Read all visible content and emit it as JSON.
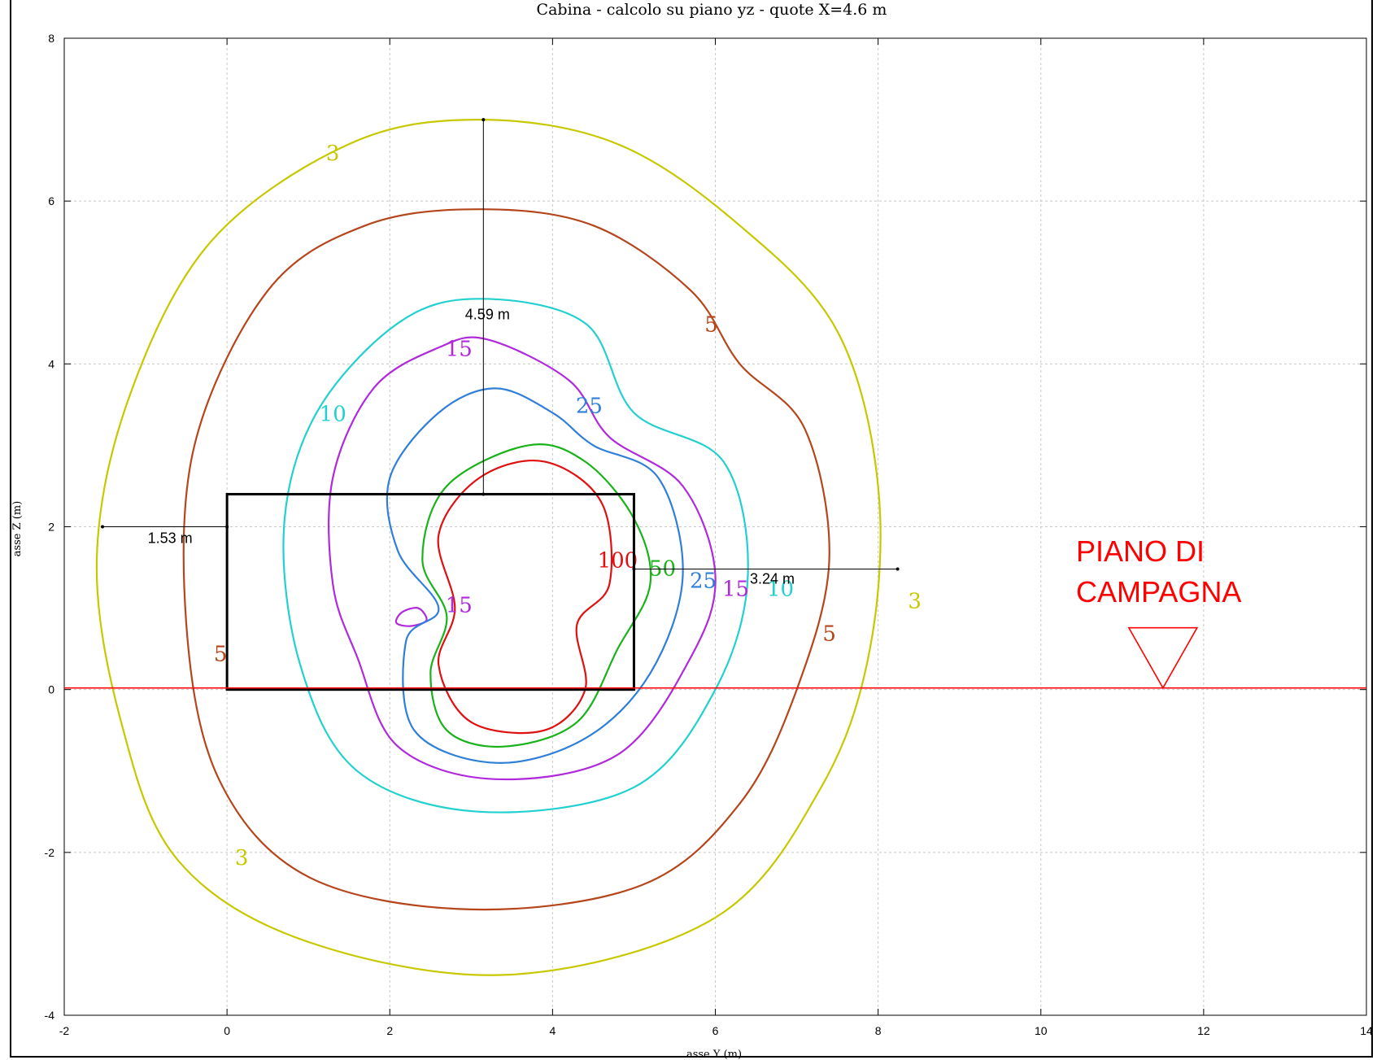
{
  "chart_data": {
    "type": "contour",
    "title": "Cabina  -  calcolo su piano yz  -  quote X=4.6 m",
    "xlabel": "asse Y (m)",
    "ylabel": "asse Z (m)",
    "xlim": [
      -2,
      14
    ],
    "ylim": [
      -4,
      8
    ],
    "xticks": [
      "-2",
      "0",
      "2",
      "4",
      "6",
      "8",
      "10",
      "12",
      "14"
    ],
    "yticks": [
      "8",
      "6",
      "4",
      "2",
      "0",
      "-2",
      "-4"
    ],
    "grid": true,
    "colors": {
      "c3": "#c8c800",
      "c5": "#b5461c",
      "c10": "#22d0d0",
      "c15": "#b02adc",
      "c25": "#2f7fd8",
      "c50": "#1ab21a",
      "c100": "#e01010",
      "ground": "#ff0000"
    },
    "series": [
      {
        "name": "3",
        "color": "#c8c800",
        "points": [
          [
            3.1,
            7.0
          ],
          [
            4.8,
            6.7
          ],
          [
            6.3,
            5.7
          ],
          [
            7.5,
            4.4
          ],
          [
            8.0,
            2.5
          ],
          [
            7.9,
            0.5
          ],
          [
            7.3,
            -1.2
          ],
          [
            6.0,
            -2.8
          ],
          [
            3.5,
            -3.5
          ],
          [
            1.0,
            -3.1
          ],
          [
            -0.6,
            -2.1
          ],
          [
            -1.3,
            -0.4
          ],
          [
            -1.6,
            1.6
          ],
          [
            -1.2,
            3.6
          ],
          [
            -0.2,
            5.5
          ],
          [
            1.5,
            6.7
          ],
          [
            3.1,
            7.0
          ]
        ]
      },
      {
        "name": "5",
        "color": "#b5461c",
        "points": [
          [
            3.1,
            5.9
          ],
          [
            4.5,
            5.7
          ],
          [
            5.7,
            4.9
          ],
          [
            6.3,
            4.0
          ],
          [
            7.1,
            3.2
          ],
          [
            7.4,
            1.6
          ],
          [
            7.0,
            0.0
          ],
          [
            6.3,
            -1.4
          ],
          [
            5.1,
            -2.4
          ],
          [
            3.0,
            -2.7
          ],
          [
            1.0,
            -2.3
          ],
          [
            -0.1,
            -1.1
          ],
          [
            -0.5,
            0.8
          ],
          [
            -0.4,
            3.0
          ],
          [
            0.5,
            4.9
          ],
          [
            1.7,
            5.7
          ],
          [
            3.1,
            5.9
          ]
        ]
      },
      {
        "name": "10",
        "color": "#22d0d0",
        "points": [
          [
            3.1,
            4.8
          ],
          [
            4.4,
            4.5
          ],
          [
            5.0,
            3.4
          ],
          [
            6.1,
            2.8
          ],
          [
            6.4,
            1.4
          ],
          [
            6.0,
            0.0
          ],
          [
            5.0,
            -1.2
          ],
          [
            3.1,
            -1.5
          ],
          [
            1.6,
            -1.0
          ],
          [
            0.9,
            0.3
          ],
          [
            0.7,
            2.0
          ],
          [
            1.1,
            3.4
          ],
          [
            2.1,
            4.5
          ],
          [
            3.1,
            4.8
          ]
        ]
      },
      {
        "name": "15",
        "color": "#b02adc",
        "points": [
          [
            3.2,
            4.3
          ],
          [
            4.2,
            3.8
          ],
          [
            4.7,
            3.1
          ],
          [
            5.6,
            2.5
          ],
          [
            6.0,
            1.4
          ],
          [
            5.7,
            0.4
          ],
          [
            4.8,
            -0.8
          ],
          [
            3.3,
            -1.1
          ],
          [
            2.1,
            -0.7
          ],
          [
            1.6,
            0.4
          ],
          [
            1.3,
            1.3
          ],
          [
            1.3,
            2.6
          ],
          [
            1.8,
            3.7
          ],
          [
            2.6,
            4.2
          ],
          [
            3.2,
            4.3
          ]
        ]
      },
      {
        "name": "15b",
        "color": "#b02adc",
        "points": [
          [
            2.15,
            0.95
          ],
          [
            2.35,
            1.0
          ],
          [
            2.45,
            0.85
          ],
          [
            2.25,
            0.78
          ],
          [
            2.08,
            0.82
          ],
          [
            2.15,
            0.95
          ]
        ]
      },
      {
        "name": "25",
        "color": "#2f7fd8",
        "points": [
          [
            3.3,
            3.7
          ],
          [
            4.0,
            3.4
          ],
          [
            4.5,
            3.0
          ],
          [
            5.3,
            2.6
          ],
          [
            5.6,
            1.4
          ],
          [
            5.2,
            0.2
          ],
          [
            4.4,
            -0.6
          ],
          [
            3.3,
            -0.9
          ],
          [
            2.3,
            -0.5
          ],
          [
            2.2,
            0.6
          ],
          [
            2.6,
            1.0
          ],
          [
            2.1,
            1.7
          ],
          [
            2.0,
            2.6
          ],
          [
            2.6,
            3.4
          ],
          [
            3.3,
            3.7
          ]
        ]
      },
      {
        "name": "50",
        "color": "#1ab21a",
        "points": [
          [
            3.7,
            3.0
          ],
          [
            4.4,
            2.8
          ],
          [
            5.0,
            2.1
          ],
          [
            5.2,
            1.3
          ],
          [
            4.8,
            0.5
          ],
          [
            4.3,
            -0.4
          ],
          [
            3.4,
            -0.7
          ],
          [
            2.7,
            -0.5
          ],
          [
            2.5,
            0.2
          ],
          [
            2.7,
            0.9
          ],
          [
            2.4,
            1.6
          ],
          [
            2.7,
            2.5
          ],
          [
            3.7,
            3.0
          ]
        ]
      },
      {
        "name": "100",
        "color": "#e01010",
        "points": [
          [
            3.9,
            2.8
          ],
          [
            4.6,
            2.3
          ],
          [
            4.7,
            1.3
          ],
          [
            4.3,
            0.8
          ],
          [
            4.4,
            0.0
          ],
          [
            3.9,
            -0.5
          ],
          [
            3.0,
            -0.4
          ],
          [
            2.6,
            0.3
          ],
          [
            2.8,
            1.0
          ],
          [
            2.6,
            1.9
          ],
          [
            3.1,
            2.6
          ],
          [
            3.9,
            2.8
          ]
        ]
      }
    ],
    "contour_labels": [
      {
        "text": "3",
        "x": 1.3,
        "y": 6.5,
        "key": "c3"
      },
      {
        "text": "3",
        "x": 8.45,
        "y": 1.0,
        "key": "c3"
      },
      {
        "text": "3",
        "x": 0.18,
        "y": -2.15,
        "key": "c3"
      },
      {
        "text": "5",
        "x": 5.95,
        "y": 4.4,
        "key": "c5"
      },
      {
        "text": "5",
        "x": 7.4,
        "y": 0.6,
        "key": "c5"
      },
      {
        "text": "5",
        "x": -0.08,
        "y": 0.35,
        "key": "c5"
      },
      {
        "text": "10",
        "x": 1.3,
        "y": 3.3,
        "key": "c10"
      },
      {
        "text": "10",
        "x": 6.8,
        "y": 1.15,
        "key": "c10"
      },
      {
        "text": "15",
        "x": 2.85,
        "y": 4.1,
        "key": "c15"
      },
      {
        "text": "15",
        "x": 6.25,
        "y": 1.15,
        "key": "c15"
      },
      {
        "text": "15",
        "x": 2.85,
        "y": 0.95,
        "key": "c15"
      },
      {
        "text": "25",
        "x": 4.45,
        "y": 3.4,
        "key": "c25"
      },
      {
        "text": "25",
        "x": 5.85,
        "y": 1.25,
        "key": "c25"
      },
      {
        "text": "50",
        "x": 5.35,
        "y": 1.4,
        "key": "c50"
      },
      {
        "text": "100",
        "x": 4.8,
        "y": 1.5,
        "key": "c100"
      }
    ],
    "building_rect": {
      "y0": 0,
      "y1": 5,
      "z0": 0,
      "z1": 2.4
    },
    "dimension_lines": [
      {
        "label": "4.59 m",
        "from": [
          3.15,
          2.4
        ],
        "to": [
          3.15,
          7.0
        ],
        "label_at": [
          3.2,
          4.55
        ]
      },
      {
        "label": "1.53 m",
        "from": [
          -1.53,
          2.0
        ],
        "to": [
          0.0,
          2.0
        ],
        "label_at": [
          -0.7,
          1.8
        ]
      },
      {
        "label": "3.24 m",
        "from": [
          5.0,
          1.48
        ],
        "to": [
          8.24,
          1.48
        ],
        "label_at": [
          6.7,
          1.3
        ]
      }
    ],
    "ground": {
      "z": 0.02,
      "label_line1": "PIANO DI",
      "label_line2": "CAMPAGNA",
      "marker_y": 11.5
    }
  }
}
